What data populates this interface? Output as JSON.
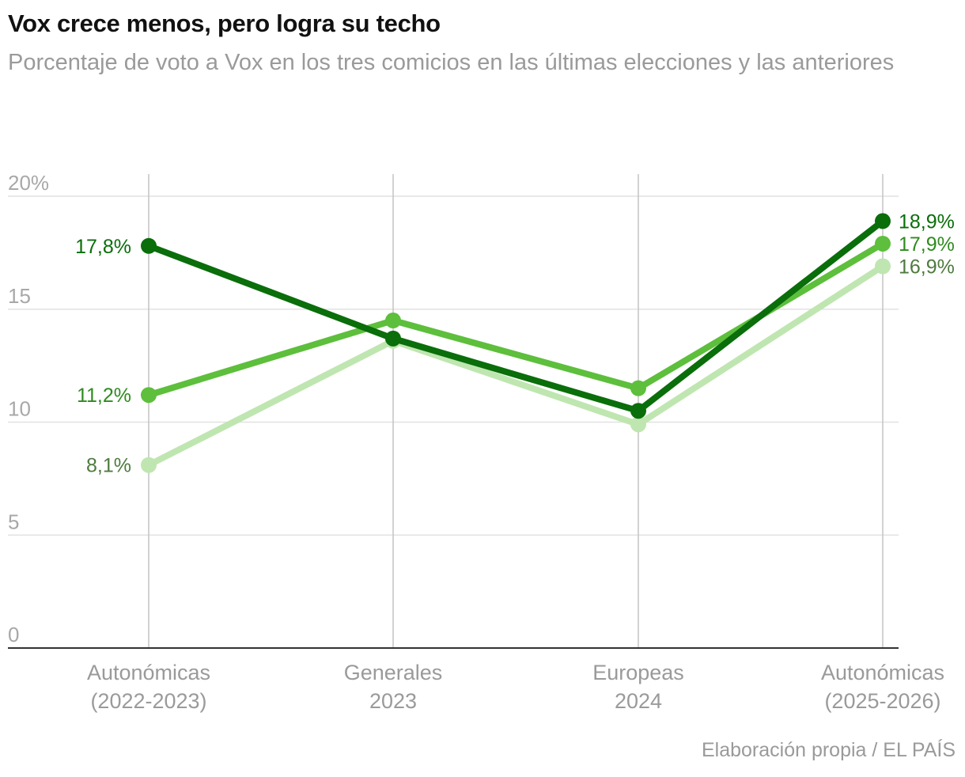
{
  "title": "Vox crece menos, pero logra su techo",
  "subtitle": "Porcentaje de voto a Vox en los tres comicios en las últimas elecciones y las anteriores",
  "source": "Elaboración propia / EL PAÍS",
  "chart_data": {
    "type": "line",
    "categories": [
      [
        "Autonómicas",
        "(2022-2023)"
      ],
      [
        "Generales",
        "2023"
      ],
      [
        "Europeas",
        "2024"
      ],
      [
        "Autonómicas",
        "(2025-2026)"
      ]
    ],
    "yticks": [
      "0",
      "5",
      "10",
      "15",
      "20%"
    ],
    "ylim": [
      0,
      20
    ],
    "series": [
      {
        "name": "serie-clara",
        "color": "#bfe6b0",
        "labelColor": "#4e7a3e",
        "values": [
          8.1,
          13.6,
          9.9,
          16.9
        ],
        "startLabel": "8,1%",
        "endLabel": "16,9%"
      },
      {
        "name": "serie-media",
        "color": "#5dbf3c",
        "labelColor": "#2e8b1e",
        "values": [
          11.2,
          14.5,
          11.5,
          17.9
        ],
        "startLabel": "11,2%",
        "endLabel": "17,9%"
      },
      {
        "name": "serie-oscura",
        "color": "#0a6e0a",
        "labelColor": "#0a6e0a",
        "values": [
          17.8,
          13.7,
          10.5,
          18.9
        ],
        "startLabel": "17,8%",
        "endLabel": "18,9%"
      }
    ]
  }
}
